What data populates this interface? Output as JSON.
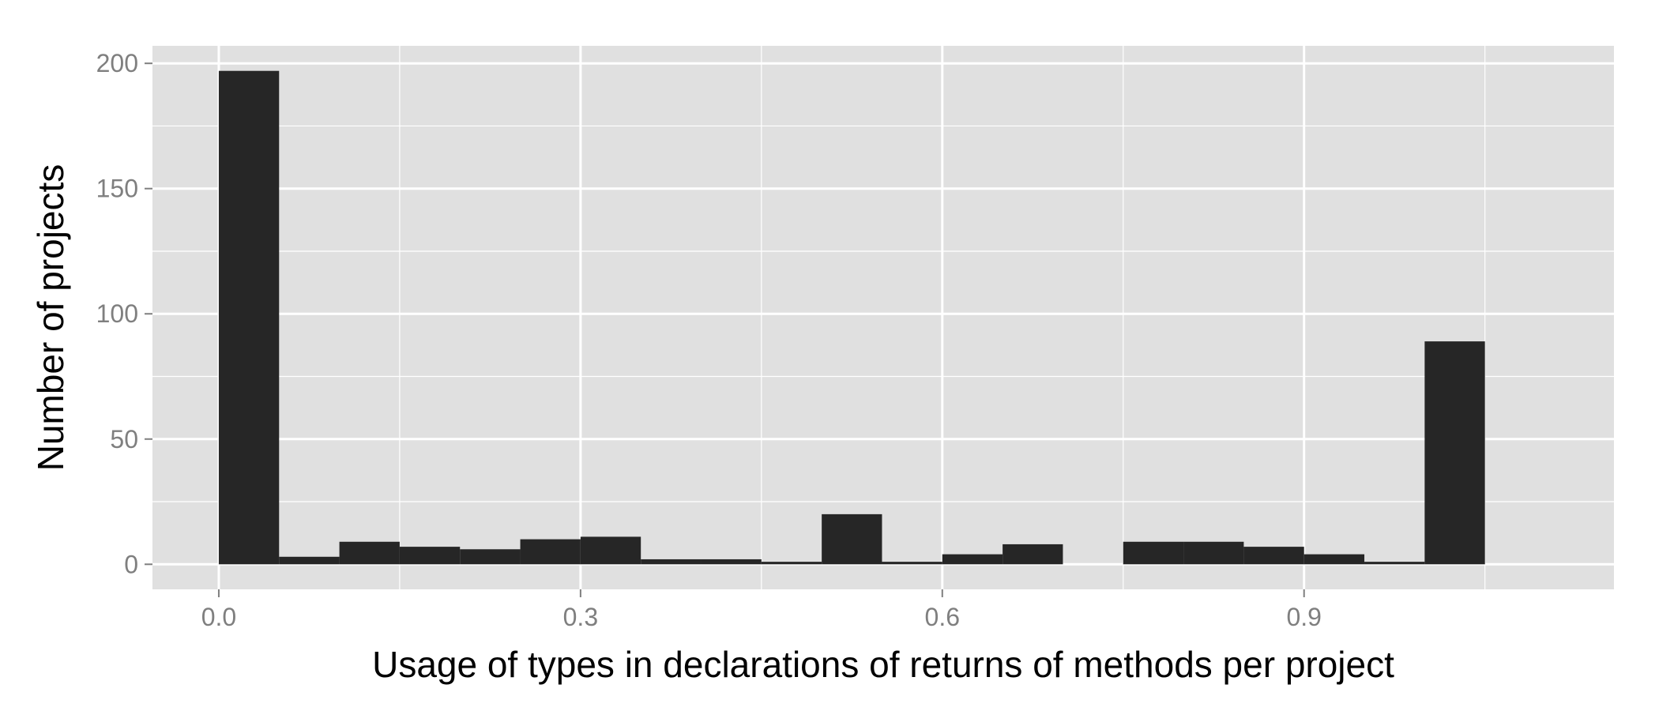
{
  "chart_data": {
    "type": "bar",
    "histogram": true,
    "title": "",
    "xlabel": "Usage of types in declarations of returns of methods per project",
    "ylabel": "Number of projects",
    "bin_width": 0.05,
    "bin_start": 0.0,
    "values": [
      197,
      3,
      9,
      7,
      6,
      10,
      11,
      2,
      2,
      1,
      20,
      1,
      4,
      8,
      0,
      9,
      9,
      7,
      4,
      1,
      89
    ],
    "xlim": [
      -0.055,
      1.157
    ],
    "ylim": [
      -10,
      207
    ],
    "x_ticks": [
      0.0,
      0.3,
      0.6,
      0.9
    ],
    "x_tick_labels": [
      "0.0",
      "0.3",
      "0.6",
      "0.9"
    ],
    "y_ticks": [
      0,
      50,
      100,
      150,
      200
    ],
    "y_tick_labels": [
      "0",
      "50",
      "100",
      "150",
      "200"
    ],
    "grid": true,
    "bar_color": "#262626",
    "panel_color": "#e0e0e0",
    "grid_color": "#ffffff"
  }
}
